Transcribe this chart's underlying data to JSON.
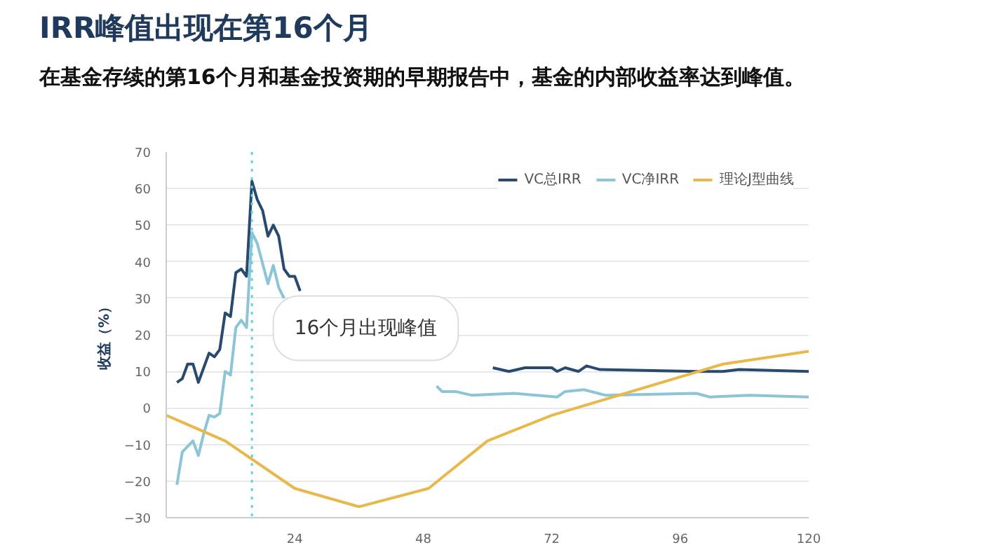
{
  "chart_data": {
    "type": "line",
    "title": "IRR峰值出现在第16个月",
    "subtitle": "在基金存续的第16个月和基金投资期的早期报告中，基金的内部收益率达到峰值。",
    "ylabel": "收益（%）",
    "xlim": [
      0,
      120
    ],
    "xticks": [
      24,
      48,
      72,
      96,
      120
    ],
    "ylim": [
      -30,
      70
    ],
    "yticks": [
      -30,
      -20,
      -10,
      0,
      10,
      20,
      30,
      40,
      50,
      60,
      70
    ],
    "grid": "y",
    "legend": "top right",
    "marker": "none",
    "line_style": "solid",
    "annotations": [
      "16个月出现峰值"
    ],
    "ref_lines": [
      {
        "axis": "x",
        "value": 16,
        "label": null,
        "color": "#5fd6d6",
        "line_style": "dotted"
      }
    ],
    "series": [
      {
        "name": "VC总IRR",
        "color": "#274a6e",
        "x": [
          2,
          3,
          4,
          5,
          6,
          8,
          9,
          10,
          11,
          12,
          13,
          14,
          15,
          16,
          17,
          18,
          19,
          20,
          21,
          22,
          23,
          24,
          25,
          36,
          61,
          64,
          67,
          72,
          73,
          74.5,
          77,
          78.5,
          81,
          99,
          104,
          107,
          120
        ],
        "values": [
          7,
          8,
          12,
          12,
          7,
          15,
          14,
          16,
          26,
          25,
          37,
          38,
          36,
          62,
          57,
          54,
          47,
          50,
          47,
          38,
          36,
          36,
          32,
          null,
          11,
          10,
          11,
          11,
          10,
          11,
          10,
          11.5,
          10.5,
          10,
          10,
          10.5,
          10
        ]
      },
      {
        "name": "VC净IRR",
        "color": "#8cc4d8",
        "x": [
          2,
          3,
          5,
          6,
          7,
          8,
          9,
          10,
          11,
          12,
          13,
          14,
          15,
          16,
          17,
          19,
          20,
          21,
          22,
          36,
          50.5,
          51.5,
          54,
          57,
          65,
          73,
          74.5,
          78,
          82,
          99,
          101.5,
          109,
          120
        ],
        "values": [
          -21,
          -12,
          -9,
          -13,
          -7,
          -2,
          -2.5,
          -1.5,
          10,
          9,
          22,
          24,
          22,
          48,
          45,
          34,
          39,
          33,
          30,
          null,
          6,
          4.5,
          4.5,
          3.5,
          4,
          3,
          4.5,
          5,
          3.5,
          4,
          3,
          3.5,
          3
        ]
      },
      {
        "name": "理论J型曲线",
        "color": "#e8b84a",
        "x": [
          0,
          11,
          24,
          36,
          49,
          60,
          72,
          104,
          120
        ],
        "values": [
          -2,
          -9,
          -22,
          -27,
          -22,
          -9,
          -2,
          12,
          15.5
        ]
      }
    ]
  }
}
